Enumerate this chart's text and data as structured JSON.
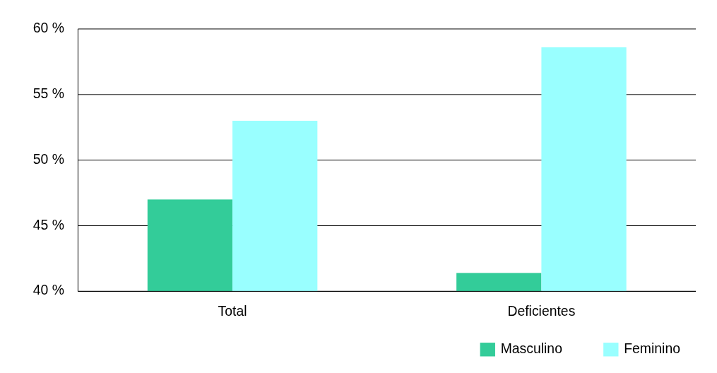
{
  "chart_data": {
    "type": "bar",
    "categories": [
      "Total",
      "Deficientes"
    ],
    "series": [
      {
        "name": "Masculino",
        "color": "#33cc99",
        "values": [
          47,
          41.4
        ]
      },
      {
        "name": "Feminino",
        "color": "#99ffff",
        "values": [
          53,
          58.6
        ]
      }
    ],
    "ylim": [
      40,
      60
    ],
    "yticks": [
      {
        "value": 40,
        "label": "40 %"
      },
      {
        "value": 45,
        "label": "45 %"
      },
      {
        "value": 50,
        "label": "50 %"
      },
      {
        "value": 55,
        "label": "55 %"
      },
      {
        "value": 60,
        "label": "60 %"
      }
    ],
    "grid": "y",
    "legend": "bottom right"
  }
}
